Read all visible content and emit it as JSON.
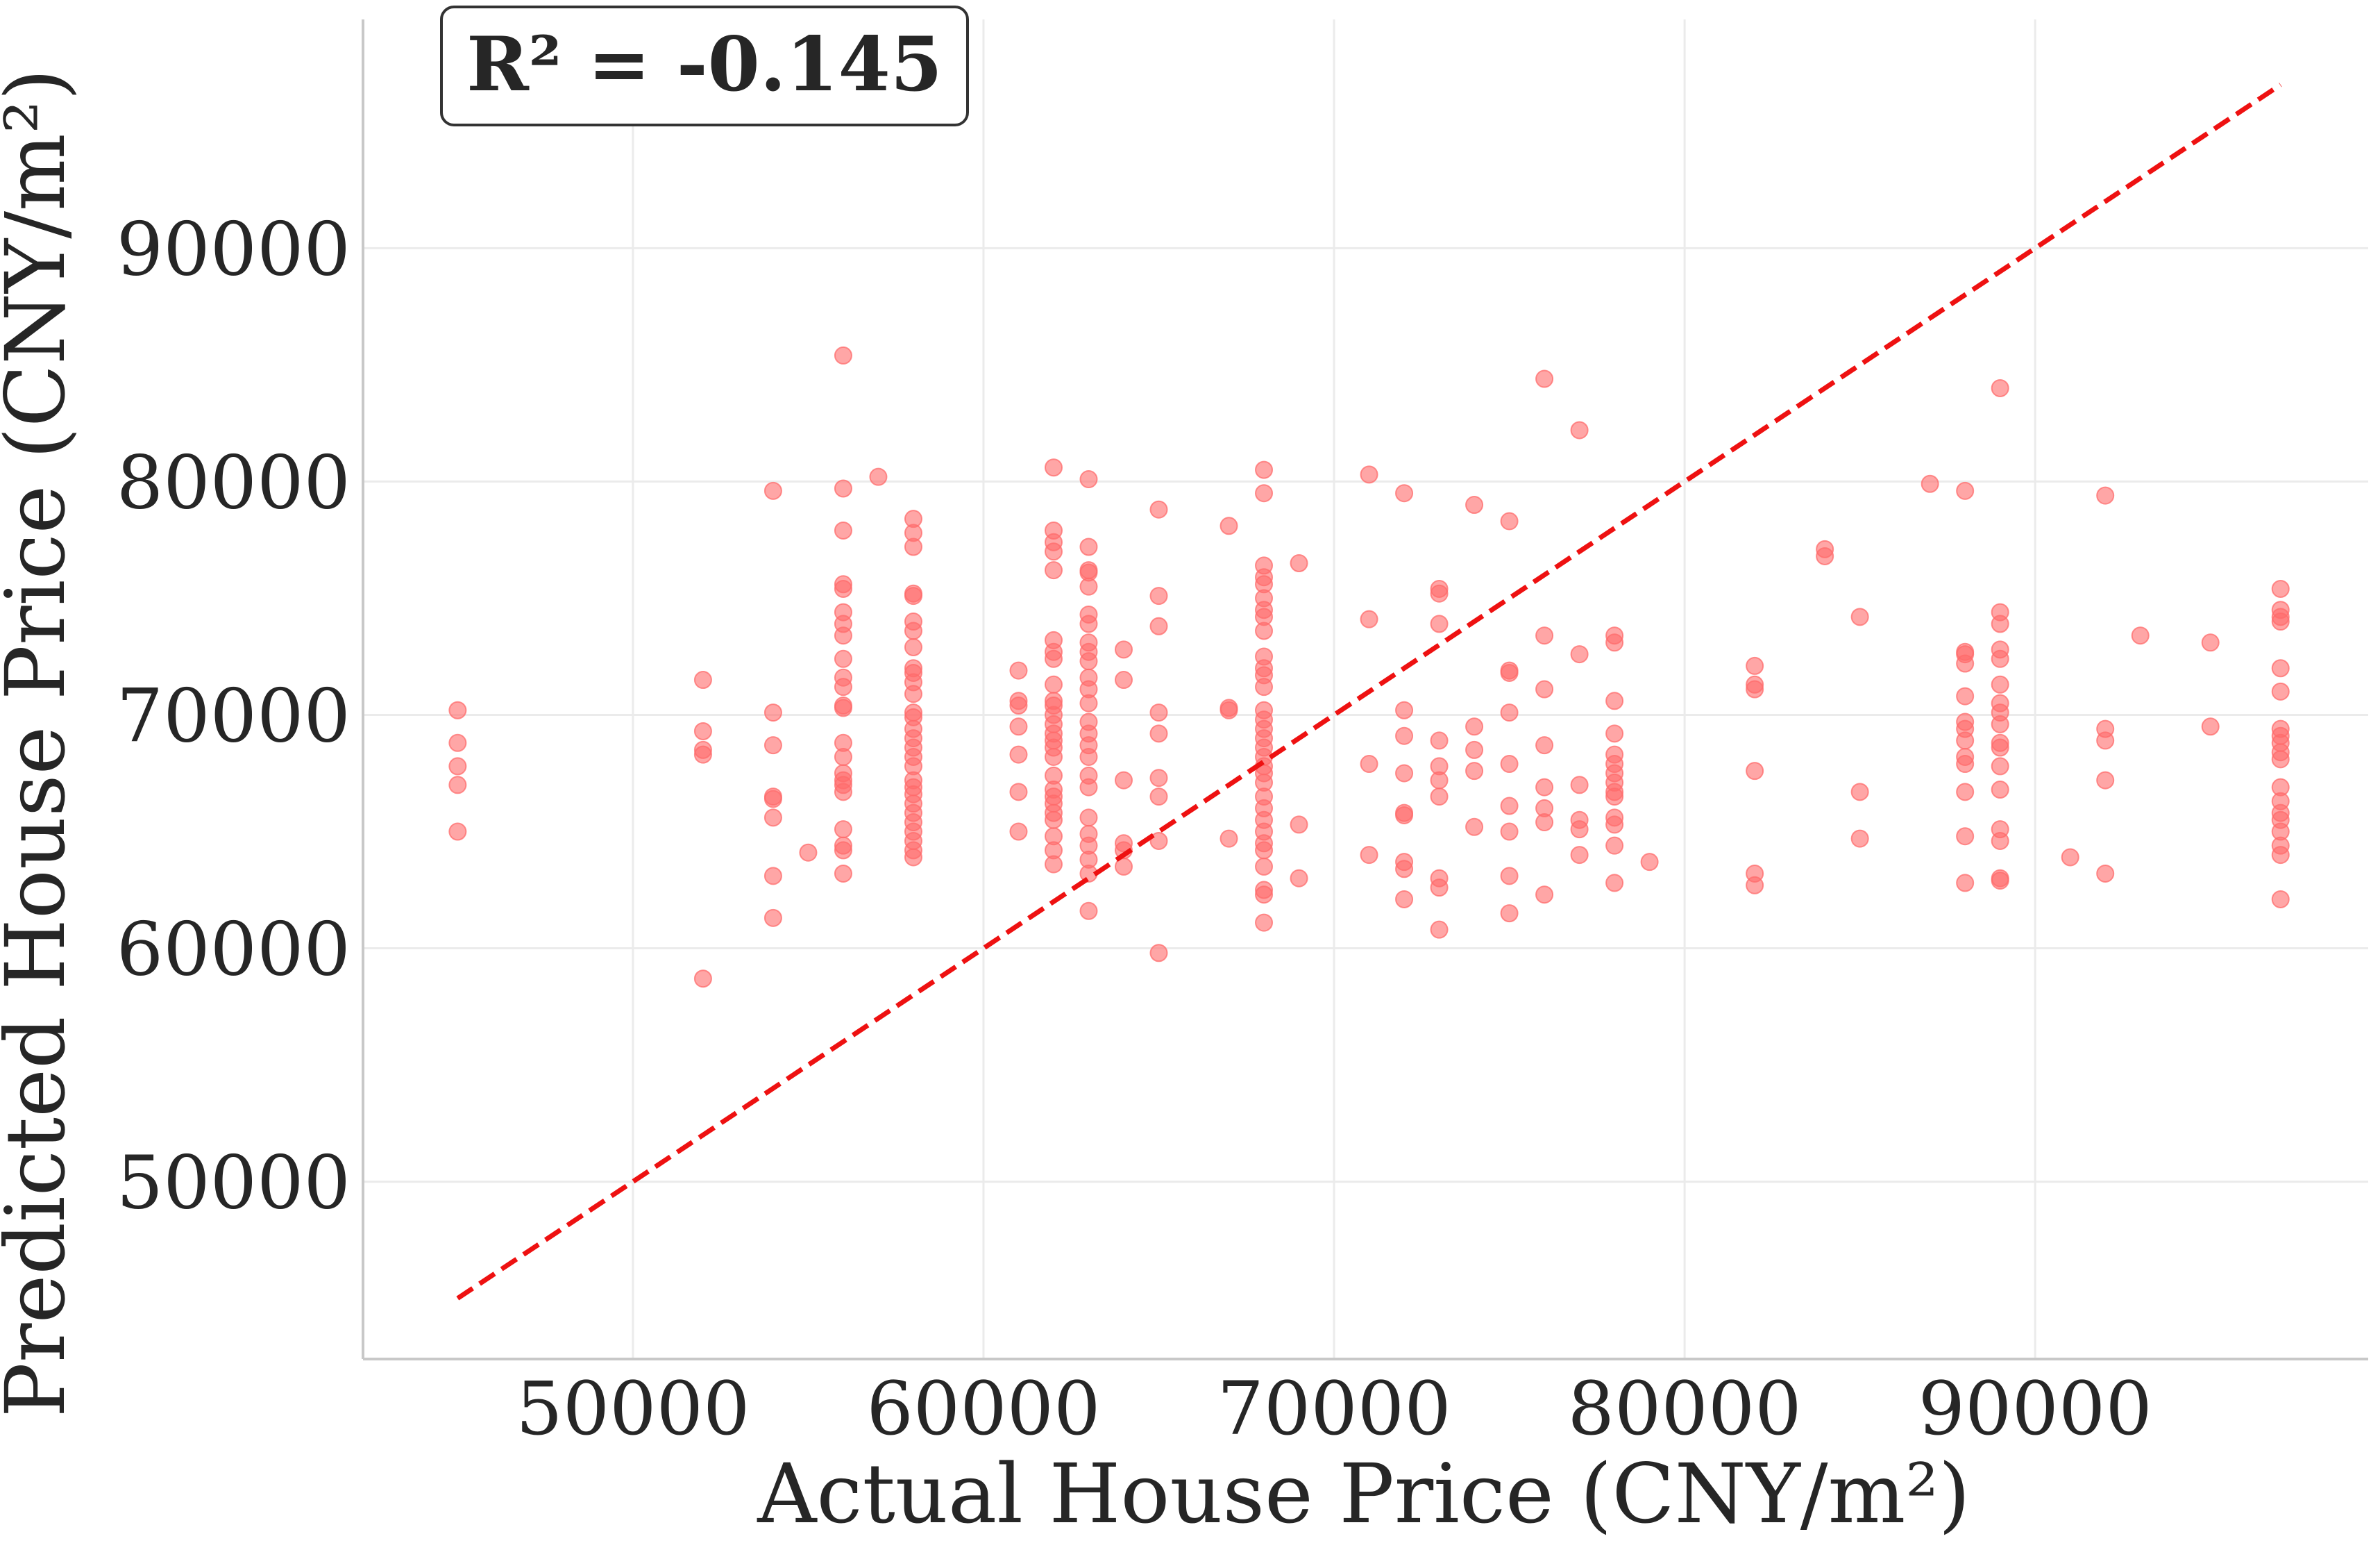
{
  "chart_data": {
    "type": "scatter",
    "title": "",
    "xlabel": "Actual House Price (CNY/m²)",
    "ylabel": "Predicted House Price (CNY/m²)",
    "xlim": [
      42300,
      99500
    ],
    "ylim": [
      42400,
      99800
    ],
    "xticks": [
      50000,
      60000,
      70000,
      80000,
      90000
    ],
    "yticks": [
      50000,
      60000,
      70000,
      80000,
      90000
    ],
    "grid": true,
    "annotation": "R² = -0.145",
    "point_color": "#ff6b6b",
    "reference_line": {
      "style": "dashed",
      "color": "#ee1111",
      "from": [
        45000,
        45000
      ],
      "to": [
        97000,
        97000
      ]
    },
    "points": [
      [
        45000,
        70200
      ],
      [
        45000,
        68800
      ],
      [
        45000,
        67800
      ],
      [
        45000,
        67000
      ],
      [
        45000,
        65000
      ],
      [
        52000,
        71500
      ],
      [
        52000,
        69300
      ],
      [
        52000,
        68500
      ],
      [
        52000,
        68300
      ],
      [
        52000,
        58700
      ],
      [
        54000,
        79600
      ],
      [
        54000,
        70100
      ],
      [
        54000,
        68700
      ],
      [
        54000,
        66500
      ],
      [
        54000,
        66400
      ],
      [
        54000,
        65600
      ],
      [
        54000,
        63100
      ],
      [
        54000,
        61300
      ],
      [
        55000,
        64100
      ],
      [
        56000,
        85400
      ],
      [
        56000,
        79700
      ],
      [
        56000,
        77900
      ],
      [
        56000,
        75600
      ],
      [
        56000,
        75400
      ],
      [
        56000,
        74400
      ],
      [
        56000,
        73900
      ],
      [
        56000,
        73400
      ],
      [
        56000,
        72400
      ],
      [
        56000,
        71600
      ],
      [
        56000,
        71200
      ],
      [
        56000,
        70400
      ],
      [
        56000,
        70300
      ],
      [
        56000,
        68800
      ],
      [
        56000,
        68200
      ],
      [
        56000,
        67500
      ],
      [
        56000,
        67200
      ],
      [
        56000,
        67000
      ],
      [
        56000,
        66700
      ],
      [
        56000,
        65100
      ],
      [
        56000,
        64400
      ],
      [
        56000,
        64200
      ],
      [
        56000,
        63200
      ],
      [
        57000,
        80200
      ],
      [
        58000,
        78400
      ],
      [
        58000,
        77800
      ],
      [
        58000,
        77200
      ],
      [
        58000,
        75200
      ],
      [
        58000,
        75100
      ],
      [
        58000,
        74000
      ],
      [
        58000,
        73600
      ],
      [
        58000,
        72900
      ],
      [
        58000,
        72000
      ],
      [
        58000,
        71800
      ],
      [
        58000,
        71400
      ],
      [
        58000,
        70900
      ],
      [
        58000,
        70100
      ],
      [
        58000,
        69900
      ],
      [
        58000,
        69400
      ],
      [
        58000,
        69000
      ],
      [
        58000,
        68600
      ],
      [
        58000,
        68200
      ],
      [
        58000,
        67800
      ],
      [
        58000,
        67200
      ],
      [
        58000,
        66900
      ],
      [
        58000,
        66600
      ],
      [
        58000,
        66200
      ],
      [
        58000,
        65800
      ],
      [
        58000,
        65400
      ],
      [
        58000,
        65000
      ],
      [
        58000,
        64600
      ],
      [
        58000,
        64200
      ],
      [
        58000,
        63900
      ],
      [
        61000,
        71900
      ],
      [
        61000,
        70600
      ],
      [
        61000,
        70400
      ],
      [
        61000,
        69500
      ],
      [
        61000,
        68300
      ],
      [
        61000,
        66700
      ],
      [
        61000,
        65000
      ],
      [
        62000,
        80600
      ],
      [
        62000,
        77900
      ],
      [
        62000,
        77400
      ],
      [
        62000,
        77000
      ],
      [
        62000,
        76200
      ],
      [
        62000,
        73200
      ],
      [
        62000,
        72700
      ],
      [
        62000,
        72400
      ],
      [
        62000,
        71300
      ],
      [
        62000,
        70600
      ],
      [
        62000,
        70400
      ],
      [
        62000,
        70000
      ],
      [
        62000,
        69600
      ],
      [
        62000,
        69200
      ],
      [
        62000,
        68900
      ],
      [
        62000,
        68600
      ],
      [
        62000,
        68200
      ],
      [
        62000,
        67400
      ],
      [
        62000,
        66800
      ],
      [
        62000,
        66500
      ],
      [
        62000,
        66200
      ],
      [
        62000,
        65800
      ],
      [
        62000,
        65500
      ],
      [
        62000,
        64800
      ],
      [
        62000,
        64200
      ],
      [
        62000,
        63600
      ],
      [
        63000,
        80100
      ],
      [
        63000,
        77200
      ],
      [
        63000,
        76200
      ],
      [
        63000,
        76100
      ],
      [
        63000,
        75500
      ],
      [
        63000,
        74300
      ],
      [
        63000,
        73900
      ],
      [
        63000,
        73100
      ],
      [
        63000,
        72700
      ],
      [
        63000,
        72300
      ],
      [
        63000,
        71600
      ],
      [
        63000,
        71100
      ],
      [
        63000,
        70500
      ],
      [
        63000,
        69700
      ],
      [
        63000,
        69200
      ],
      [
        63000,
        68700
      ],
      [
        63000,
        68200
      ],
      [
        63000,
        67400
      ],
      [
        63000,
        66900
      ],
      [
        63000,
        65600
      ],
      [
        63000,
        64900
      ],
      [
        63000,
        64400
      ],
      [
        63000,
        63800
      ],
      [
        63000,
        63200
      ],
      [
        63000,
        61600
      ],
      [
        64000,
        72800
      ],
      [
        64000,
        71500
      ],
      [
        64000,
        67200
      ],
      [
        64000,
        64500
      ],
      [
        64000,
        64200
      ],
      [
        64000,
        63500
      ],
      [
        65000,
        78800
      ],
      [
        65000,
        75100
      ],
      [
        65000,
        73800
      ],
      [
        65000,
        70100
      ],
      [
        65000,
        69200
      ],
      [
        65000,
        67300
      ],
      [
        65000,
        66500
      ],
      [
        65000,
        64600
      ],
      [
        65000,
        59800
      ],
      [
        67000,
        78100
      ],
      [
        67000,
        70300
      ],
      [
        67000,
        70200
      ],
      [
        67000,
        64700
      ],
      [
        68000,
        80500
      ],
      [
        68000,
        79500
      ],
      [
        68000,
        76400
      ],
      [
        68000,
        75900
      ],
      [
        68000,
        75600
      ],
      [
        68000,
        75000
      ],
      [
        68000,
        74500
      ],
      [
        68000,
        74200
      ],
      [
        68000,
        73600
      ],
      [
        68000,
        72500
      ],
      [
        68000,
        72000
      ],
      [
        68000,
        71700
      ],
      [
        68000,
        71200
      ],
      [
        68000,
        70200
      ],
      [
        68000,
        69800
      ],
      [
        68000,
        69400
      ],
      [
        68000,
        69000
      ],
      [
        68000,
        68600
      ],
      [
        68000,
        68200
      ],
      [
        68000,
        67800
      ],
      [
        68000,
        67500
      ],
      [
        68000,
        67100
      ],
      [
        68000,
        66500
      ],
      [
        68000,
        66000
      ],
      [
        68000,
        65500
      ],
      [
        68000,
        65000
      ],
      [
        68000,
        64500
      ],
      [
        68000,
        64200
      ],
      [
        68000,
        63500
      ],
      [
        68000,
        62500
      ],
      [
        68000,
        62300
      ],
      [
        68000,
        61100
      ],
      [
        69000,
        76500
      ],
      [
        69000,
        65300
      ],
      [
        69000,
        63000
      ],
      [
        71000,
        80300
      ],
      [
        71000,
        74100
      ],
      [
        71000,
        67900
      ],
      [
        71000,
        64000
      ],
      [
        72000,
        79500
      ],
      [
        72000,
        70200
      ],
      [
        72000,
        69100
      ],
      [
        72000,
        67500
      ],
      [
        72000,
        65800
      ],
      [
        72000,
        65700
      ],
      [
        72000,
        63700
      ],
      [
        72000,
        63400
      ],
      [
        72000,
        62100
      ],
      [
        73000,
        75400
      ],
      [
        73000,
        75200
      ],
      [
        73000,
        73900
      ],
      [
        73000,
        68900
      ],
      [
        73000,
        67800
      ],
      [
        73000,
        67200
      ],
      [
        73000,
        66500
      ],
      [
        73000,
        63000
      ],
      [
        73000,
        62600
      ],
      [
        73000,
        60800
      ],
      [
        74000,
        79000
      ],
      [
        74000,
        69500
      ],
      [
        74000,
        68500
      ],
      [
        74000,
        67600
      ],
      [
        74000,
        65200
      ],
      [
        75000,
        78300
      ],
      [
        75000,
        71900
      ],
      [
        75000,
        71800
      ],
      [
        75000,
        70100
      ],
      [
        75000,
        67900
      ],
      [
        75000,
        66100
      ],
      [
        75000,
        65000
      ],
      [
        75000,
        63100
      ],
      [
        75000,
        61500
      ],
      [
        76000,
        84400
      ],
      [
        76000,
        73400
      ],
      [
        76000,
        71100
      ],
      [
        76000,
        68700
      ],
      [
        76000,
        66900
      ],
      [
        76000,
        66000
      ],
      [
        76000,
        65400
      ],
      [
        76000,
        62300
      ],
      [
        77000,
        82200
      ],
      [
        77000,
        72600
      ],
      [
        77000,
        67000
      ],
      [
        77000,
        65500
      ],
      [
        77000,
        65100
      ],
      [
        77000,
        64000
      ],
      [
        78000,
        73400
      ],
      [
        78000,
        73100
      ],
      [
        78000,
        70600
      ],
      [
        78000,
        69200
      ],
      [
        78000,
        68300
      ],
      [
        78000,
        67900
      ],
      [
        78000,
        67500
      ],
      [
        78000,
        67100
      ],
      [
        78000,
        66700
      ],
      [
        78000,
        66500
      ],
      [
        78000,
        65600
      ],
      [
        78000,
        65300
      ],
      [
        78000,
        64400
      ],
      [
        78000,
        62800
      ],
      [
        79000,
        63700
      ],
      [
        82000,
        72100
      ],
      [
        82000,
        71300
      ],
      [
        82000,
        71100
      ],
      [
        82000,
        67600
      ],
      [
        82000,
        63200
      ],
      [
        82000,
        62700
      ],
      [
        84000,
        77100
      ],
      [
        84000,
        76800
      ],
      [
        85000,
        74200
      ],
      [
        85000,
        66700
      ],
      [
        85000,
        64700
      ],
      [
        87000,
        79900
      ],
      [
        88000,
        79600
      ],
      [
        88000,
        72700
      ],
      [
        88000,
        72600
      ],
      [
        88000,
        72200
      ],
      [
        88000,
        70800
      ],
      [
        88000,
        69700
      ],
      [
        88000,
        69400
      ],
      [
        88000,
        68900
      ],
      [
        88000,
        68200
      ],
      [
        88000,
        67900
      ],
      [
        88000,
        66700
      ],
      [
        88000,
        64800
      ],
      [
        88000,
        62800
      ],
      [
        89000,
        84000
      ],
      [
        89000,
        74400
      ],
      [
        89000,
        73900
      ],
      [
        89000,
        72800
      ],
      [
        89000,
        72400
      ],
      [
        89000,
        71300
      ],
      [
        89000,
        70500
      ],
      [
        89000,
        70100
      ],
      [
        89000,
        69600
      ],
      [
        89000,
        68800
      ],
      [
        89000,
        68600
      ],
      [
        89000,
        67800
      ],
      [
        89000,
        66800
      ],
      [
        89000,
        65100
      ],
      [
        89000,
        64600
      ],
      [
        89000,
        63000
      ],
      [
        89000,
        62900
      ],
      [
        91000,
        63900
      ],
      [
        92000,
        79400
      ],
      [
        92000,
        69400
      ],
      [
        92000,
        68900
      ],
      [
        92000,
        67200
      ],
      [
        92000,
        63200
      ],
      [
        93000,
        73400
      ],
      [
        95000,
        73100
      ],
      [
        95000,
        69500
      ],
      [
        97000,
        75400
      ],
      [
        97000,
        74500
      ],
      [
        97000,
        74200
      ],
      [
        97000,
        74000
      ],
      [
        97000,
        72000
      ],
      [
        97000,
        71000
      ],
      [
        97000,
        69400
      ],
      [
        97000,
        69100
      ],
      [
        97000,
        68800
      ],
      [
        97000,
        68400
      ],
      [
        97000,
        68100
      ],
      [
        97000,
        66900
      ],
      [
        97000,
        66300
      ],
      [
        97000,
        65800
      ],
      [
        97000,
        65500
      ],
      [
        97000,
        65000
      ],
      [
        97000,
        64400
      ],
      [
        97000,
        64000
      ],
      [
        97000,
        62100
      ]
    ]
  }
}
